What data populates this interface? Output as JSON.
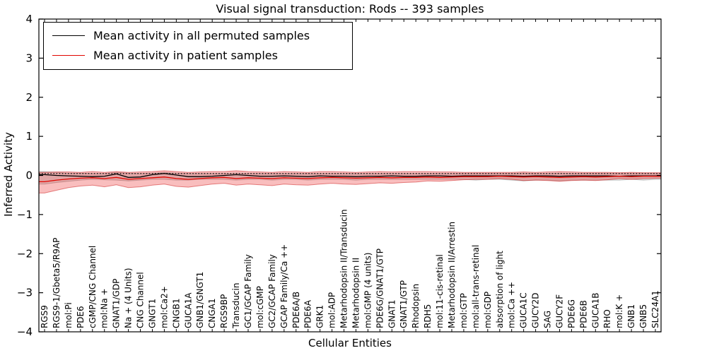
{
  "title": "Visual signal transduction: Rods -- 393 samples",
  "axes": {
    "x_label": "Cellular Entities",
    "y_label": "Inferred Activity",
    "y_ticks": [
      4,
      3,
      2,
      1,
      0,
      -1,
      -2,
      -3,
      -4
    ],
    "ylim": [
      -4,
      4
    ]
  },
  "legend": {
    "items": [
      {
        "label": "Mean activity in all permuted samples",
        "color": "#000000"
      },
      {
        "label": "Mean activity in patient samples",
        "color": "#e10600"
      }
    ]
  },
  "colors": {
    "permuted_line": "#000000",
    "patient_line": "#e10600",
    "patient_band_fill": "rgba(235,40,40,0.30)",
    "patient_band_edge": "rgba(200,0,0,0.45)",
    "permuted_band_fill": "rgba(130,130,130,0.28)",
    "permuted_band_edge": "rgba(110,110,110,0.40)",
    "frame": "#000000"
  },
  "chart_data": {
    "type": "line",
    "title": "Visual signal transduction: Rods -- 393 samples",
    "xlabel": "Cellular Entities",
    "ylabel": "Inferred Activity",
    "ylim": [
      -4,
      4
    ],
    "grid": false,
    "legend_position": "upper left",
    "threshold_dotted_y": 0.05,
    "categories": [
      "RGS9",
      "RGS9-1/Gbeta5/R9AP",
      "mol:Pi",
      "PDE6",
      "cGMP/CNG Channel",
      "mol:Na +",
      "GNAT1/GDP",
      "Na + (4 Units)",
      "CNG Channel",
      "GNGT1",
      "mol:Ca2+",
      "CNGB1",
      "GUCA1A",
      "GNB1/GNGT1",
      "CNGA1",
      "RGS9BP",
      "Transducin",
      "GC1/GCAP Family",
      "mol:cGMP",
      "GC2/GCAP Family",
      "GCAP Family/Ca ++",
      "PDE6A/B",
      "PDE6A",
      "GRK1",
      "mol:ADP",
      "Metarhodopsin II/Transducin",
      "Metarhodopsin II",
      "mol:GMP (4 units)",
      "PDE6G/GNAT1/GTP",
      "GNAT1",
      "GNAT1/GTP",
      "Rhodopsin",
      "RDH5",
      "mol:11-cis-retinal",
      "Metarhodopsin II/Arrestin",
      "mol:GTP",
      "mol:all-trans-retinal",
      "mol:GDP",
      "absorption of light",
      "mol:Ca ++",
      "GUCA1C",
      "GUCY2D",
      "SAG",
      "GUCY2F",
      "PDE6G",
      "PDE6B",
      "GUCA1B",
      "RHO",
      "mol:K +",
      "GNB1",
      "GNB5",
      "SLC24A1"
    ],
    "series": [
      {
        "name": "Mean activity in all permuted samples",
        "values": [
          0.02,
          0.0,
          -0.01,
          -0.02,
          -0.03,
          -0.02,
          0.04,
          -0.05,
          -0.04,
          0.02,
          0.05,
          0.01,
          -0.03,
          -0.03,
          -0.02,
          0.0,
          0.02,
          0.0,
          -0.02,
          -0.02,
          -0.01,
          -0.02,
          -0.03,
          -0.01,
          -0.02,
          -0.02,
          -0.03,
          -0.02,
          -0.02,
          -0.01,
          -0.02,
          -0.02,
          -0.01,
          -0.01,
          -0.02,
          -0.01,
          -0.01,
          -0.01,
          -0.01,
          -0.01,
          -0.02,
          -0.01,
          -0.01,
          -0.02,
          -0.01,
          -0.01,
          -0.01,
          -0.01,
          -0.02,
          -0.01,
          -0.01,
          -0.01
        ]
      },
      {
        "name": "Mean activity in patient samples",
        "values": [
          -0.16,
          -0.12,
          -0.09,
          -0.07,
          -0.06,
          -0.08,
          -0.05,
          -0.1,
          -0.08,
          -0.06,
          -0.04,
          -0.08,
          -0.1,
          -0.08,
          -0.06,
          -0.05,
          -0.08,
          -0.06,
          -0.07,
          -0.08,
          -0.06,
          -0.07,
          -0.08,
          -0.06,
          -0.05,
          -0.06,
          -0.07,
          -0.06,
          -0.05,
          -0.06,
          -0.05,
          -0.05,
          -0.04,
          -0.05,
          -0.04,
          -0.03,
          -0.03,
          -0.03,
          -0.02,
          -0.03,
          -0.04,
          -0.03,
          -0.04,
          -0.05,
          -0.04,
          -0.03,
          -0.04,
          -0.03,
          -0.02,
          -0.03,
          -0.02,
          -0.02
        ]
      }
    ],
    "bands": [
      {
        "name": "patient band",
        "upper": [
          0.08,
          0.09,
          0.09,
          0.08,
          0.1,
          0.08,
          0.1,
          0.08,
          0.09,
          0.1,
          0.12,
          0.1,
          0.08,
          0.09,
          0.1,
          0.1,
          0.12,
          0.1,
          0.09,
          0.08,
          0.1,
          0.09,
          0.08,
          0.1,
          0.1,
          0.09,
          0.08,
          0.09,
          0.1,
          0.09,
          0.1,
          0.1,
          0.1,
          0.09,
          0.09,
          0.08,
          0.08,
          0.08,
          0.08,
          0.08,
          0.09,
          0.08,
          0.09,
          0.1,
          0.09,
          0.08,
          0.08,
          0.08,
          0.07,
          0.08,
          0.07,
          0.07
        ],
        "lower": [
          -0.45,
          -0.38,
          -0.31,
          -0.27,
          -0.25,
          -0.29,
          -0.24,
          -0.31,
          -0.29,
          -0.25,
          -0.22,
          -0.28,
          -0.3,
          -0.26,
          -0.22,
          -0.2,
          -0.25,
          -0.22,
          -0.24,
          -0.26,
          -0.22,
          -0.24,
          -0.25,
          -0.22,
          -0.2,
          -0.22,
          -0.23,
          -0.21,
          -0.19,
          -0.2,
          -0.18,
          -0.17,
          -0.14,
          -0.15,
          -0.13,
          -0.11,
          -0.1,
          -0.1,
          -0.08,
          -0.1,
          -0.13,
          -0.12,
          -0.13,
          -0.15,
          -0.13,
          -0.12,
          -0.13,
          -0.11,
          -0.08,
          -0.1,
          -0.08,
          -0.07
        ]
      },
      {
        "name": "permuted band",
        "upper": [
          0.1,
          0.08,
          0.06,
          0.06,
          0.05,
          0.05,
          0.08,
          0.06,
          0.05,
          0.06,
          0.08,
          0.06,
          0.05,
          0.05,
          0.05,
          0.05,
          0.06,
          0.05,
          0.05,
          0.05,
          0.05,
          0.05,
          0.05,
          0.05,
          0.05,
          0.05,
          0.05,
          0.05,
          0.05,
          0.05,
          0.05,
          0.05,
          0.05,
          0.05,
          0.05,
          0.05,
          0.05,
          0.05,
          0.05,
          0.05,
          0.06,
          0.05,
          0.05,
          0.06,
          0.05,
          0.05,
          0.05,
          0.05,
          0.05,
          0.05,
          0.05,
          0.05
        ],
        "lower": [
          -0.22,
          -0.18,
          -0.15,
          -0.12,
          -0.1,
          -0.11,
          -0.12,
          -0.14,
          -0.12,
          -0.1,
          -0.1,
          -0.12,
          -0.12,
          -0.1,
          -0.1,
          -0.1,
          -0.12,
          -0.1,
          -0.1,
          -0.12,
          -0.1,
          -0.1,
          -0.12,
          -0.1,
          -0.1,
          -0.1,
          -0.12,
          -0.1,
          -0.1,
          -0.1,
          -0.1,
          -0.1,
          -0.1,
          -0.1,
          -0.1,
          -0.1,
          -0.12,
          -0.1,
          -0.1,
          -0.12,
          -0.14,
          -0.12,
          -0.12,
          -0.14,
          -0.12,
          -0.12,
          -0.12,
          -0.12,
          -0.12,
          -0.1,
          -0.12,
          -0.1
        ]
      }
    ]
  }
}
